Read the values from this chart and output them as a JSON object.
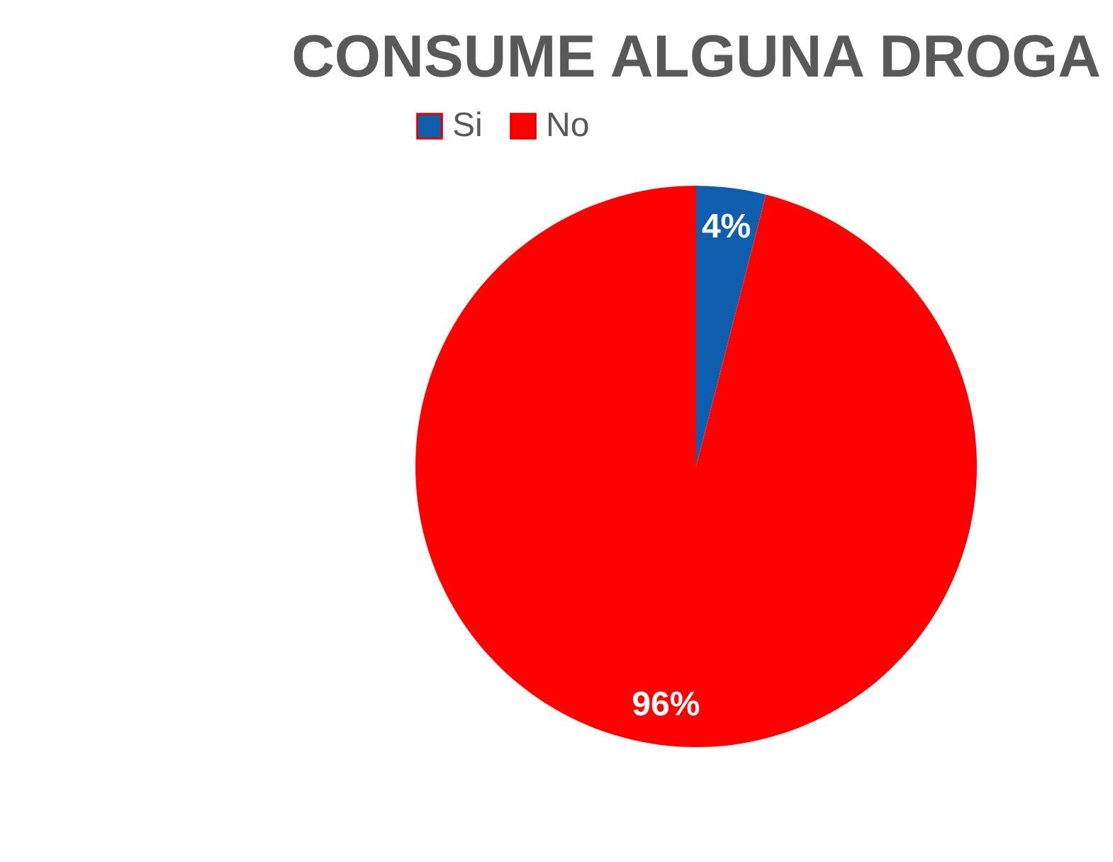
{
  "chart_data": {
    "type": "pie",
    "title": "CONSUME ALGUNA DROGA",
    "categories": [
      "Si",
      "No"
    ],
    "values": [
      4,
      96
    ],
    "colors": [
      "#0f5fae",
      "#ff0000"
    ],
    "value_labels": [
      "4%",
      "96%"
    ],
    "legend": "top"
  }
}
